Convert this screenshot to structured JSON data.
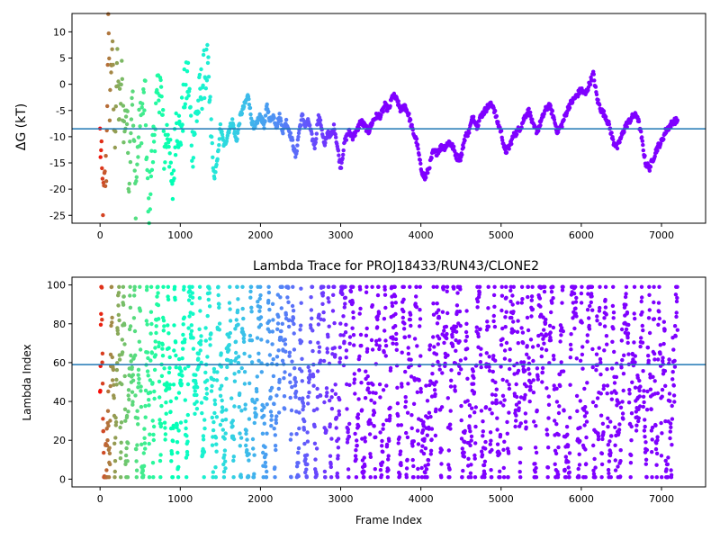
{
  "chart_data": [
    {
      "type": "scatter",
      "title": "",
      "xlabel": "",
      "ylabel": "ΔG (kT)",
      "xlim": [
        -350,
        7550
      ],
      "ylim": [
        -26.5,
        13.5
      ],
      "xticks": [
        0,
        1000,
        2000,
        3000,
        4000,
        5000,
        6000,
        7000
      ],
      "yticks": [
        -25,
        -20,
        -15,
        -10,
        -5,
        0,
        5,
        10
      ],
      "hline": -8.5,
      "hline_color": "#1f77b4",
      "colormap": "rainbow (red at frame 0 → violet at late frames)",
      "trace": [
        [
          0,
          -10
        ],
        [
          40,
          -23
        ],
        [
          80,
          -15
        ],
        [
          100,
          12
        ],
        [
          120,
          -3
        ],
        [
          150,
          8
        ],
        [
          180,
          -12
        ],
        [
          210,
          4
        ],
        [
          240,
          -6
        ],
        [
          270,
          1
        ],
        [
          300,
          -9
        ],
        [
          330,
          -4
        ],
        [
          360,
          -18
        ],
        [
          400,
          0
        ],
        [
          440,
          -22
        ],
        [
          480,
          -10
        ],
        [
          520,
          -6
        ],
        [
          560,
          -2
        ],
        [
          600,
          -25
        ],
        [
          650,
          -14
        ],
        [
          700,
          -5
        ],
        [
          750,
          1
        ],
        [
          800,
          -13
        ],
        [
          850,
          -8
        ],
        [
          900,
          -22
        ],
        [
          950,
          -6
        ],
        [
          1000,
          -10
        ],
        [
          1050,
          -2
        ],
        [
          1100,
          1
        ],
        [
          1150,
          -12
        ],
        [
          1200,
          -6
        ],
        [
          1260,
          -1
        ],
        [
          1300,
          2
        ],
        [
          1340,
          3
        ],
        [
          1380,
          -8
        ],
        [
          1420,
          -18
        ],
        [
          1460,
          -15
        ],
        [
          1500,
          -8
        ],
        [
          1550,
          -12
        ],
        [
          1600,
          -9
        ],
        [
          1650,
          -7
        ],
        [
          1700,
          -11
        ],
        [
          1750,
          -6
        ],
        [
          1800,
          -4
        ],
        [
          1850,
          -2
        ],
        [
          1880,
          -6
        ],
        [
          1920,
          -9
        ],
        [
          1960,
          -7
        ],
        [
          2000,
          -6
        ],
        [
          2050,
          -8
        ],
        [
          2080,
          -4
        ],
        [
          2120,
          -7
        ],
        [
          2160,
          -6
        ],
        [
          2200,
          -8
        ],
        [
          2240,
          -6
        ],
        [
          2280,
          -9
        ],
        [
          2320,
          -7
        ],
        [
          2360,
          -9
        ],
        [
          2400,
          -11
        ],
        [
          2440,
          -14
        ],
        [
          2480,
          -9
        ],
        [
          2520,
          -6
        ],
        [
          2560,
          -8
        ],
        [
          2600,
          -7
        ],
        [
          2640,
          -10
        ],
        [
          2680,
          -12
        ],
        [
          2720,
          -6
        ],
        [
          2760,
          -8
        ],
        [
          2800,
          -12
        ],
        [
          2840,
          -9
        ],
        [
          2880,
          -10
        ],
        [
          2920,
          -8
        ],
        [
          2960,
          -12
        ],
        [
          3000,
          -16
        ],
        [
          3050,
          -11
        ],
        [
          3100,
          -9
        ],
        [
          3150,
          -10
        ],
        [
          3200,
          -9
        ],
        [
          3250,
          -7
        ],
        [
          3300,
          -8
        ],
        [
          3350,
          -9
        ],
        [
          3400,
          -7
        ],
        [
          3450,
          -6
        ],
        [
          3500,
          -6
        ],
        [
          3550,
          -4
        ],
        [
          3600,
          -5
        ],
        [
          3650,
          -2
        ],
        [
          3700,
          -3
        ],
        [
          3750,
          -5
        ],
        [
          3800,
          -4
        ],
        [
          3850,
          -6
        ],
        [
          3900,
          -9
        ],
        [
          3950,
          -11
        ],
        [
          4000,
          -16
        ],
        [
          4050,
          -18
        ],
        [
          4100,
          -16
        ],
        [
          4150,
          -13
        ],
        [
          4200,
          -13
        ],
        [
          4250,
          -12
        ],
        [
          4300,
          -12
        ],
        [
          4350,
          -11
        ],
        [
          4400,
          -12
        ],
        [
          4450,
          -14
        ],
        [
          4500,
          -14
        ],
        [
          4550,
          -10
        ],
        [
          4600,
          -9
        ],
        [
          4650,
          -6
        ],
        [
          4700,
          -8
        ],
        [
          4750,
          -6
        ],
        [
          4800,
          -5
        ],
        [
          4850,
          -4
        ],
        [
          4900,
          -4
        ],
        [
          4950,
          -7
        ],
        [
          5000,
          -9
        ],
        [
          5050,
          -13
        ],
        [
          5100,
          -12
        ],
        [
          5150,
          -10
        ],
        [
          5200,
          -9
        ],
        [
          5250,
          -8
        ],
        [
          5300,
          -6
        ],
        [
          5350,
          -5
        ],
        [
          5400,
          -8
        ],
        [
          5450,
          -9
        ],
        [
          5500,
          -7
        ],
        [
          5550,
          -5
        ],
        [
          5600,
          -4
        ],
        [
          5650,
          -6
        ],
        [
          5700,
          -9
        ],
        [
          5750,
          -8
        ],
        [
          5800,
          -6
        ],
        [
          5850,
          -4
        ],
        [
          5900,
          -3
        ],
        [
          5950,
          -2
        ],
        [
          6000,
          -1
        ],
        [
          6050,
          -2
        ],
        [
          6100,
          0
        ],
        [
          6150,
          2
        ],
        [
          6200,
          -3
        ],
        [
          6250,
          -5
        ],
        [
          6300,
          -6
        ],
        [
          6350,
          -8
        ],
        [
          6400,
          -11
        ],
        [
          6450,
          -12
        ],
        [
          6500,
          -10
        ],
        [
          6550,
          -8
        ],
        [
          6600,
          -7
        ],
        [
          6650,
          -6
        ],
        [
          6700,
          -6
        ],
        [
          6750,
          -10
        ],
        [
          6800,
          -15
        ],
        [
          6850,
          -16
        ],
        [
          6900,
          -14
        ],
        [
          6950,
          -12
        ],
        [
          7000,
          -11
        ],
        [
          7050,
          -9
        ],
        [
          7100,
          -8
        ],
        [
          7150,
          -7
        ],
        [
          7200,
          -7
        ]
      ]
    },
    {
      "type": "scatter",
      "title": "Lambda Trace for PROJ18433/RUN43/CLONE2",
      "xlabel": "Frame Index",
      "ylabel": "Lambda Index",
      "xlim": [
        -350,
        7550
      ],
      "ylim": [
        -4,
        104
      ],
      "xticks": [
        0,
        1000,
        2000,
        3000,
        4000,
        5000,
        6000,
        7000
      ],
      "yticks": [
        0,
        20,
        40,
        60,
        80,
        100
      ],
      "hline": 59,
      "hline_color": "#1f77b4",
      "colormap": "rainbow (red at frame 0 → violet at late frames)",
      "x_range": [
        0,
        7200
      ],
      "y_range": [
        0,
        99
      ]
    }
  ]
}
